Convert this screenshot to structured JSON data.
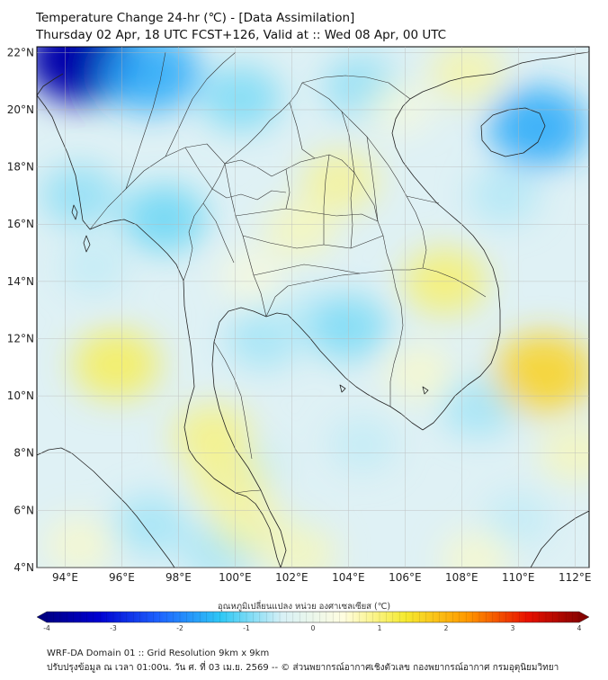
{
  "header": {
    "title_line1": "Temperature Change 24-hr (℃) - [Data Assimilation]",
    "title_line2": "Thursday 02 Apr, 18 UTC FCST+126, Valid at :: Wed 08 Apr, 00 UTC"
  },
  "map": {
    "lon_range": [
      93,
      112.5
    ],
    "lat_range": [
      4,
      22.2
    ],
    "lon_ticks": [
      {
        "value": 94,
        "label": "94°E"
      },
      {
        "value": 96,
        "label": "96°E"
      },
      {
        "value": 98,
        "label": "98°E"
      },
      {
        "value": 100,
        "label": "100°E"
      },
      {
        "value": 102,
        "label": "102°E"
      },
      {
        "value": 104,
        "label": "104°E"
      },
      {
        "value": 106,
        "label": "106°E"
      },
      {
        "value": 108,
        "label": "108°E"
      },
      {
        "value": 110,
        "label": "110°E"
      },
      {
        "value": 112,
        "label": "112°E"
      }
    ],
    "lat_ticks": [
      {
        "value": 4,
        "label": "4°N"
      },
      {
        "value": 6,
        "label": "6°N"
      },
      {
        "value": 8,
        "label": "8°N"
      },
      {
        "value": 10,
        "label": "10°N"
      },
      {
        "value": 12,
        "label": "12°N"
      },
      {
        "value": 14,
        "label": "14°N"
      },
      {
        "value": 16,
        "label": "16°N"
      },
      {
        "value": 18,
        "label": "18°N"
      },
      {
        "value": 20,
        "label": "20°N"
      },
      {
        "value": 22,
        "label": "22°N"
      }
    ],
    "background_color": "#dff1f5",
    "coastline_color": "#222222",
    "blue_anomalies": [
      {
        "lon": 94.6,
        "lat": 21.8,
        "value": -3.5
      },
      {
        "lon": 97.0,
        "lat": 21.3,
        "value": -1.6
      },
      {
        "lon": 100.2,
        "lat": 20.4,
        "value": -1.0
      },
      {
        "lon": 104.5,
        "lat": 20.8,
        "value": -0.9
      },
      {
        "lon": 110.7,
        "lat": 19.4,
        "value": -1.6
      },
      {
        "lon": 94.5,
        "lat": 17.0,
        "value": -0.9
      },
      {
        "lon": 97.5,
        "lat": 16.2,
        "value": -1.1
      },
      {
        "lon": 95.0,
        "lat": 14.5,
        "value": -0.6
      },
      {
        "lon": 101.0,
        "lat": 12.0,
        "value": -0.8
      },
      {
        "lon": 102.5,
        "lat": 12.8,
        "value": -0.6
      },
      {
        "lon": 104.0,
        "lat": 12.4,
        "value": -1.0
      },
      {
        "lon": 108.6,
        "lat": 9.6,
        "value": -0.8
      },
      {
        "lon": 109.5,
        "lat": 17.0,
        "value": -0.7
      },
      {
        "lon": 104.5,
        "lat": 8.3,
        "value": -0.6
      },
      {
        "lon": 100.5,
        "lat": 7.5,
        "value": -0.6
      },
      {
        "lon": 97.0,
        "lat": 5.5,
        "value": -0.8
      },
      {
        "lon": 110.0,
        "lat": 5.7,
        "value": -0.6
      },
      {
        "lon": 99.5,
        "lat": 4.6,
        "value": -0.8
      },
      {
        "lon": 102.0,
        "lat": 5.0,
        "value": -0.5
      }
    ],
    "yellow_anomalies": [
      {
        "lon": 95.8,
        "lat": 11.1,
        "value": 1.2
      },
      {
        "lon": 103.7,
        "lat": 17.5,
        "value": 0.9
      },
      {
        "lon": 102.3,
        "lat": 15.8,
        "value": 0.7
      },
      {
        "lon": 107.4,
        "lat": 14.0,
        "value": 1.1
      },
      {
        "lon": 106.5,
        "lat": 10.8,
        "value": 0.6
      },
      {
        "lon": 110.9,
        "lat": 10.8,
        "value": 1.6
      },
      {
        "lon": 112.0,
        "lat": 8.0,
        "value": 0.7
      },
      {
        "lon": 99.2,
        "lat": 8.6,
        "value": 1.0
      },
      {
        "lon": 99.8,
        "lat": 7.0,
        "value": 0.9
      },
      {
        "lon": 100.5,
        "lat": 5.5,
        "value": 0.8
      },
      {
        "lon": 102.3,
        "lat": 4.5,
        "value": 0.7
      },
      {
        "lon": 94.5,
        "lat": 4.8,
        "value": 0.6
      },
      {
        "lon": 108.5,
        "lat": 4.3,
        "value": 0.6
      },
      {
        "lon": 108.2,
        "lat": 21.3,
        "value": 0.8
      },
      {
        "lon": 105.8,
        "lat": 20.1,
        "value": 0.5
      },
      {
        "lon": 100.6,
        "lat": 14.2,
        "value": 0.5
      }
    ]
  },
  "colorbar": {
    "title": "อุณหภูมิเปลี่ยนแปลง หน่วย องศาเซลเซียส (℃)",
    "min": -4,
    "max": 4,
    "ticks": [
      {
        "value": -4,
        "label": "-4"
      },
      {
        "value": -3,
        "label": "-3"
      },
      {
        "value": -2,
        "label": "-2"
      },
      {
        "value": -1,
        "label": "-1"
      },
      {
        "value": 0,
        "label": "0"
      },
      {
        "value": 1,
        "label": "1"
      },
      {
        "value": 2,
        "label": "2"
      },
      {
        "value": 3,
        "label": "3"
      },
      {
        "value": 4,
        "label": "4"
      }
    ],
    "stops": [
      "#00007a",
      "#0000d0",
      "#1e64ff",
      "#2ec8f5",
      "#d8f1f6",
      "#fffde0",
      "#f5ea30",
      "#ff9a00",
      "#e81000",
      "#7a0000"
    ]
  },
  "footer": {
    "line1": "WRF-DA Domain 01 :: Grid Resolution 9km x 9km",
    "line2": "ปรับปรุงข้อมูล ณ เวลา 01:00น. วัน ศ. ที่ 03 เม.ย. 2569 -- © ส่วนพยากรณ์อากาศเชิงตัวเลข กองพยากรณ์อากาศ กรมอุตุนิยมวิทยา"
  }
}
